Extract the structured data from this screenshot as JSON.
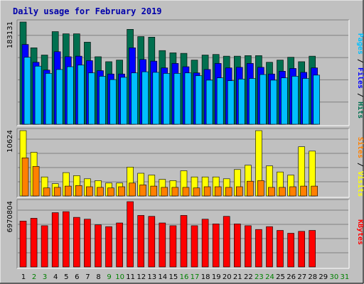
{
  "chart_data": {
    "type": "bar",
    "title": "Daily usage for February 2019",
    "days": [
      "1",
      "2",
      "3",
      "4",
      "5",
      "6",
      "7",
      "8",
      "9",
      "10",
      "11",
      "12",
      "13",
      "14",
      "15",
      "16",
      "17",
      "18",
      "19",
      "20",
      "21",
      "22",
      "23",
      "24",
      "25",
      "26",
      "27",
      "28",
      "29",
      "30",
      "31"
    ],
    "weekend_days": [
      "2",
      "3",
      "9",
      "10",
      "16",
      "17",
      "23",
      "24",
      "30",
      "31"
    ],
    "panels": [
      {
        "id": "hits-files-pages",
        "max_label": "183131",
        "max": 183131,
        "series": [
          {
            "name": "Hits",
            "color": "#006f4f",
            "values": [
              183131,
              137000,
              124000,
              166000,
              162000,
              162000,
              147000,
              121000,
              112000,
              115000,
              170000,
              157000,
              156000,
              132000,
              128000,
              127000,
              115000,
              124000,
              125000,
              122000,
              122000,
              123000,
              123000,
              111000,
              115000,
              120000,
              112000,
              122000
            ]
          },
          {
            "name": "Files",
            "color": "#0000ff",
            "values": [
              143000,
              111000,
              97000,
              130000,
              121000,
              122000,
              114000,
              96000,
              90000,
              90000,
              137000,
              116000,
              113000,
              101000,
              109000,
              103000,
              92000,
              98000,
              109000,
              101000,
              102000,
              109000,
              102000,
              90000,
              95000,
              100000,
              93000,
              101000
            ]
          },
          {
            "name": "Pages",
            "color": "#00bfff",
            "values": [
              120000,
              104000,
              91000,
              98000,
              103000,
              106000,
              92000,
              86000,
              80000,
              84000,
              92000,
              94000,
              93000,
              91000,
              91000,
              92000,
              87000,
              79000,
              83000,
              78000,
              81000,
              82000,
              89000,
              79000,
              83000,
              86000,
              82000,
              88000
            ]
          }
        ]
      },
      {
        "id": "visits-sites",
        "max_label": "10624",
        "max": 10624,
        "series": [
          {
            "name": "Visits",
            "color": "#ffff00",
            "values": [
              10624,
              7100,
              3100,
              2000,
              3800,
              3300,
              2800,
              2500,
              2100,
              2100,
              4700,
              3700,
              3400,
              2700,
              2500,
              4100,
              3100,
              3100,
              3100,
              2800,
              4300,
              5000,
              10624,
              4900,
              3900,
              3400,
              8000,
              7300
            ]
          },
          {
            "name": "Sites",
            "color": "#ff8000",
            "values": [
              6200,
              4800,
              1300,
              1400,
              1600,
              1700,
              1500,
              1400,
              1300,
              1500,
              2100,
              1800,
              1600,
              1400,
              1400,
              1400,
              1300,
              1500,
              1500,
              1400,
              1500,
              2400,
              2500,
              1400,
              1400,
              1500,
              1600,
              1600
            ]
          }
        ]
      },
      {
        "id": "kbytes",
        "max_label": "6970804",
        "max": 6970804,
        "series": [
          {
            "name": "KBytes",
            "color": "#ff0000",
            "values": [
              4900000,
              5200000,
              4400000,
              5800000,
              5900000,
              5300000,
              5100000,
              4500000,
              4300000,
              4700000,
              6970804,
              5500000,
              5400000,
              4700000,
              4400000,
              5500000,
              4400000,
              5100000,
              4600000,
              5400000,
              4600000,
              4400000,
              4000000,
              4300000,
              3900000,
              3600000,
              3800000,
              3900000
            ]
          }
        ]
      }
    ],
    "side_labels": {
      "panel1": [
        {
          "text": "Pages",
          "color": "#00bfff"
        },
        {
          "text": " / ",
          "color": "#000000"
        },
        {
          "text": "Files",
          "color": "#0000ff"
        },
        {
          "text": " / ",
          "color": "#000000"
        },
        {
          "text": "Hits",
          "color": "#006f4f"
        }
      ],
      "panel2": [
        {
          "text": "Sites",
          "color": "#ff8000"
        },
        {
          "text": " / ",
          "color": "#000000"
        },
        {
          "text": "Visits",
          "color": "#ffff00"
        }
      ],
      "panel3": [
        {
          "text": "KBytes",
          "color": "#ff0000"
        }
      ]
    },
    "colors": {
      "background": "#c0c0c0",
      "title": "#0000aa",
      "weekday_label": "#000000",
      "weekend_label": "#008000",
      "grid": "#808080"
    },
    "grid": true
  }
}
